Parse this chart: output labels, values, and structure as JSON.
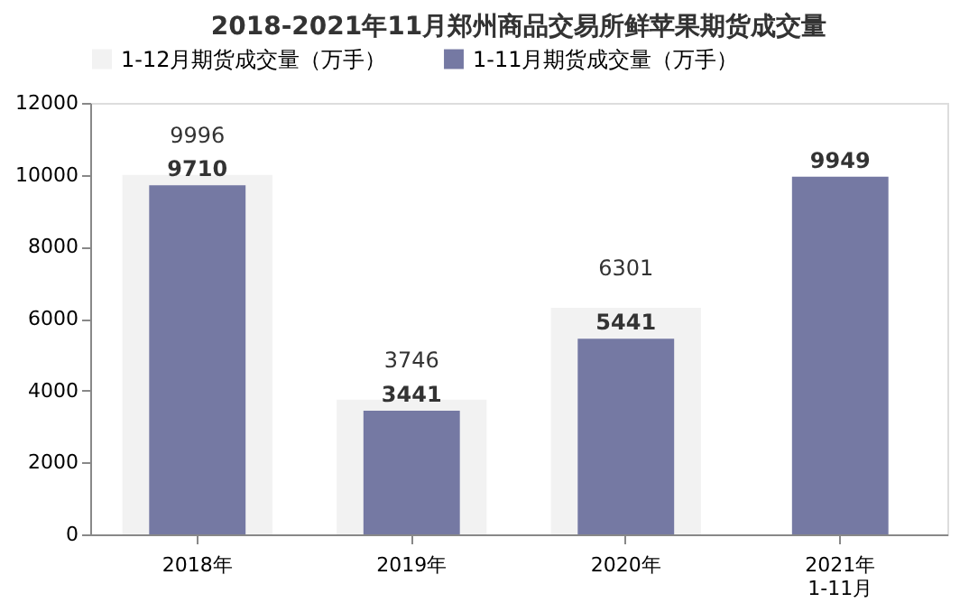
{
  "chart_data": {
    "type": "bar",
    "title": "2018-2021年11月郑州商品交易所鲜苹果期货成交量",
    "categories": [
      "2018年",
      "2019年",
      "2020年",
      "2021年\n1-11月"
    ],
    "series": [
      {
        "name": "1-12月期货成交量（万手）",
        "color": "#f2f2f2",
        "values": [
          9996,
          3746,
          6301,
          null
        ]
      },
      {
        "name": "1-11月期货成交量（万手）",
        "color": "#7579a3",
        "values": [
          9710,
          3441,
          5441,
          9949
        ]
      }
    ],
    "ylim": [
      0,
      12000
    ],
    "yticks": [
      0,
      2000,
      4000,
      6000,
      8000,
      10000,
      12000
    ],
    "grid": false,
    "legend": "top",
    "data_labels": true
  }
}
